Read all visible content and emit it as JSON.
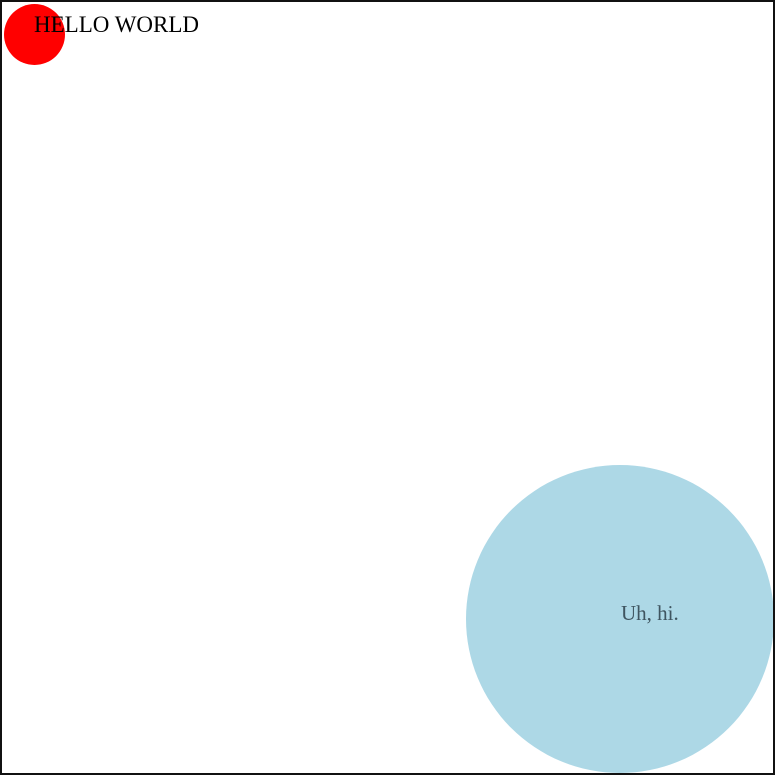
{
  "canvas": {
    "border_color": "#111111",
    "background_color": "#ffffff"
  },
  "red_circle": {
    "color": "#ff0000",
    "label": "HELLO WORLD",
    "label_color": "#000000"
  },
  "blue_circle": {
    "color": "#add8e6",
    "label": "Uh, hi.",
    "label_color": "#3f5560"
  }
}
